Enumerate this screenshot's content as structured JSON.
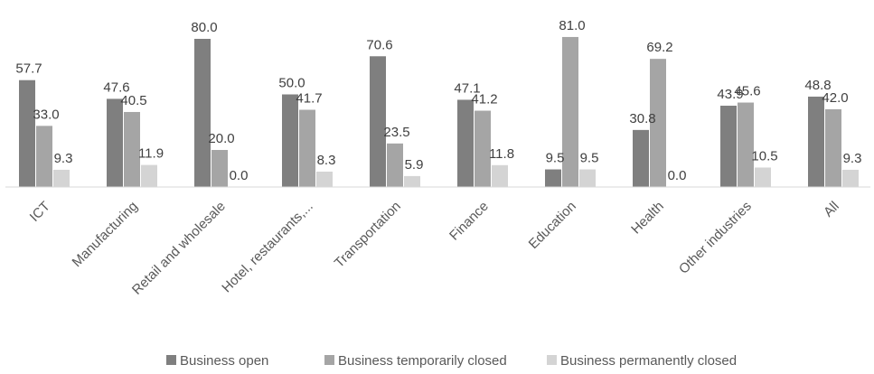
{
  "chart_data": {
    "type": "bar",
    "categories": [
      "ICT",
      "Manufacturing",
      "Retail and wholesale",
      "Hotel, restaurants,...",
      "Transportation",
      "Finance",
      "Education",
      "Health",
      "Other industries",
      "All"
    ],
    "series": [
      {
        "name": "Business open",
        "color": "#7f7f7f",
        "values": [
          57.7,
          47.6,
          80.0,
          50.0,
          70.6,
          47.1,
          9.5,
          30.8,
          43.9,
          48.8
        ]
      },
      {
        "name": "Business temporarily closed",
        "color": "#a5a5a5",
        "values": [
          33.0,
          40.5,
          20.0,
          41.7,
          23.5,
          41.2,
          81.0,
          69.2,
          45.6,
          42.0
        ]
      },
      {
        "name": "Business permanently closed",
        "color": "#d4d4d4",
        "values": [
          9.3,
          11.9,
          0.0,
          8.3,
          5.9,
          11.8,
          9.5,
          0.0,
          10.5,
          9.3
        ]
      }
    ],
    "value_labels": [
      [
        "57.7",
        "47.6",
        "80.0",
        "50.0",
        "70.6",
        "47.1",
        "9.5",
        "30.8",
        "43.9",
        "48.8"
      ],
      [
        "33.0",
        "40.5",
        "20.0",
        "41.7",
        "23.5",
        "41.2",
        "81.0",
        "69.2",
        "45.6",
        "42.0"
      ],
      [
        "9.3",
        "11.9",
        "0.0",
        "8.3",
        "5.9",
        "11.8",
        "9.5",
        "0.0",
        "10.5",
        "9.3"
      ]
    ],
    "ylim": [
      0,
      85
    ],
    "grid": false,
    "legend_position": "bottom",
    "data_labels": true
  }
}
